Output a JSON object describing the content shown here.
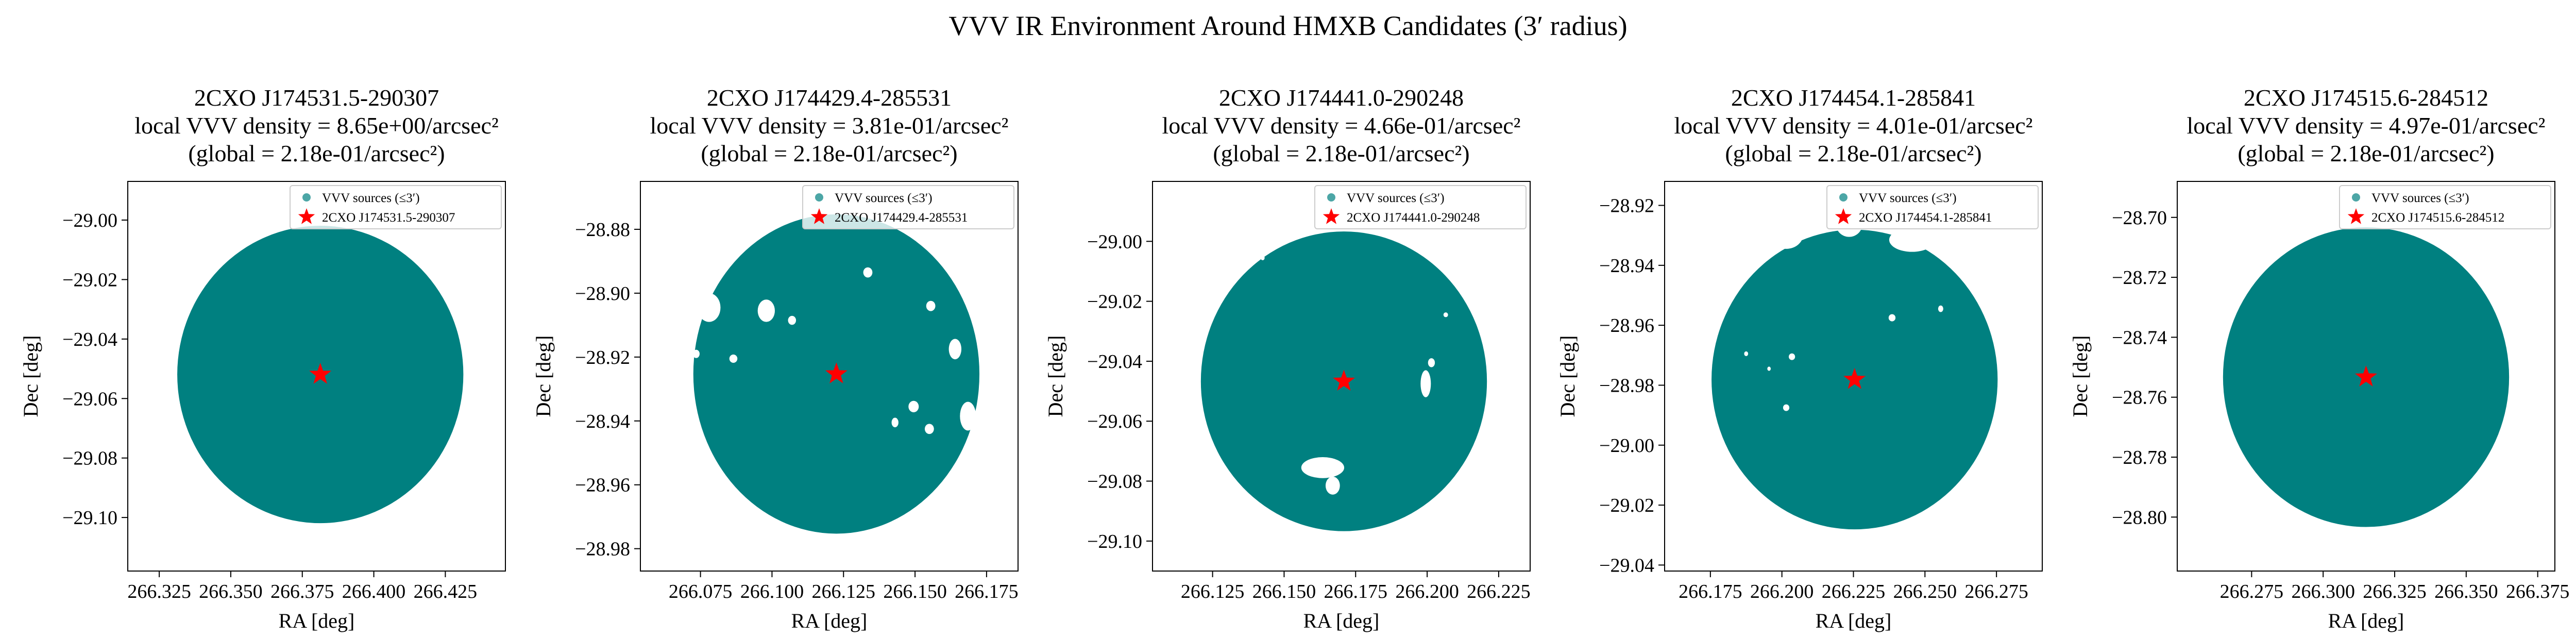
{
  "figure": {
    "suptitle": "VVV IR Environment Around HMXB Candidates (3′ radius)"
  },
  "chart_data": [
    {
      "type": "scatter",
      "title_lines": [
        "2CXO J174531.5-290307",
        "local VVV density = 8.65e+00/arcsec²",
        "(global = 2.18e-01/arcsec²)"
      ],
      "xlabel": "RA [deg]",
      "ylabel": "Dec [deg]",
      "xlim": [
        266.314,
        266.446
      ],
      "ylim": [
        -29.118,
        -28.987
      ],
      "xticks": [
        266.325,
        266.35,
        266.375,
        266.4,
        266.425
      ],
      "xtick_labels": [
        "266.325",
        "266.350",
        "266.375",
        "266.400",
        "266.425"
      ],
      "yticks": [
        -29.1,
        -29.08,
        -29.06,
        -29.04,
        -29.02,
        -29.0
      ],
      "ytick_labels": [
        "−29.10",
        "−29.08",
        "−29.06",
        "−29.04",
        "−29.02",
        "−29.00"
      ],
      "center": {
        "ra": 266.3813,
        "dec": -29.0519
      },
      "radius_deg": 0.05,
      "voids": [],
      "bites": [],
      "series": [
        {
          "name": "VVV sources (≤3′)",
          "color": "#008080",
          "marker": "circle"
        },
        {
          "name": "2CXO J174531.5-290307",
          "color": "#ff0000",
          "marker": "star"
        }
      ],
      "legend": "top-right"
    },
    {
      "type": "scatter",
      "title_lines": [
        "2CXO J174429.4-285531",
        "local VVV density = 3.81e-01/arcsec²",
        "(global = 2.18e-01/arcsec²)"
      ],
      "xlabel": "RA [deg]",
      "ylabel": "Dec [deg]",
      "xlim": [
        266.054,
        266.186
      ],
      "ylim": [
        -28.987,
        -28.865
      ],
      "xticks": [
        266.075,
        266.1,
        266.125,
        266.15,
        266.175
      ],
      "xtick_labels": [
        "266.075",
        "266.100",
        "266.125",
        "266.150",
        "266.175"
      ],
      "yticks": [
        -28.98,
        -28.96,
        -28.94,
        -28.92,
        -28.9,
        -28.88
      ],
      "ytick_labels": [
        "−28.98",
        "−28.96",
        "−28.94",
        "−28.92",
        "−28.90",
        "−28.88"
      ],
      "center": {
        "ra": 266.1225,
        "dec": -28.9253
      },
      "radius_deg": 0.05,
      "voids": [
        {
          "ra": 266.078,
          "dec": -28.9045,
          "rra": 0.004,
          "rdec": 0.0045
        },
        {
          "ra": 266.098,
          "dec": -28.9055,
          "rra": 0.003,
          "rdec": 0.0035
        },
        {
          "ra": 266.0735,
          "dec": -28.919,
          "rra": 0.0012,
          "rdec": 0.0013
        },
        {
          "ra": 266.0865,
          "dec": -28.9205,
          "rra": 0.0014,
          "rdec": 0.0013
        },
        {
          "ra": 266.107,
          "dec": -28.9085,
          "rra": 0.0014,
          "rdec": 0.0014
        },
        {
          "ra": 266.1335,
          "dec": -28.8935,
          "rra": 0.0016,
          "rdec": 0.0016
        },
        {
          "ra": 266.1555,
          "dec": -28.904,
          "rra": 0.0016,
          "rdec": 0.0016
        },
        {
          "ra": 266.164,
          "dec": -28.9175,
          "rra": 0.0022,
          "rdec": 0.0032
        },
        {
          "ra": 266.1495,
          "dec": -28.9355,
          "rra": 0.0018,
          "rdec": 0.0018
        },
        {
          "ra": 266.143,
          "dec": -28.9405,
          "rra": 0.0012,
          "rdec": 0.0015
        },
        {
          "ra": 266.155,
          "dec": -28.9425,
          "rra": 0.0016,
          "rdec": 0.0016
        },
        {
          "ra": 266.1685,
          "dec": -28.9385,
          "rra": 0.0028,
          "rdec": 0.0045
        }
      ],
      "bites": [],
      "series": [
        {
          "name": "VVV sources (≤3′)",
          "color": "#008080",
          "marker": "circle"
        },
        {
          "name": "2CXO J174429.4-285531",
          "color": "#ff0000",
          "marker": "star"
        }
      ],
      "legend": "top-right"
    },
    {
      "type": "scatter",
      "title_lines": [
        "2CXO J174441.0-290248",
        "local VVV density = 4.66e-01/arcsec²",
        "(global = 2.18e-01/arcsec²)"
      ],
      "xlabel": "RA [deg]",
      "ylabel": "Dec [deg]",
      "xlim": [
        266.104,
        266.236
      ],
      "ylim": [
        -29.11,
        -28.98
      ],
      "xticks": [
        266.125,
        266.15,
        266.175,
        266.2,
        266.225
      ],
      "xtick_labels": [
        "266.125",
        "266.150",
        "266.175",
        "266.200",
        "266.225"
      ],
      "yticks": [
        -29.1,
        -29.08,
        -29.06,
        -29.04,
        -29.02,
        -29.0
      ],
      "ytick_labels": [
        "−29.10",
        "−29.08",
        "−29.06",
        "−29.04",
        "−29.02",
        "−29.00"
      ],
      "center": {
        "ra": 266.1709,
        "dec": -29.0467
      },
      "radius_deg": 0.05,
      "voids": [
        {
          "ra": 266.1635,
          "dec": -29.0755,
          "rra": 0.0075,
          "rdec": 0.0035
        },
        {
          "ra": 266.167,
          "dec": -29.0815,
          "rra": 0.0025,
          "rdec": 0.003
        },
        {
          "ra": 266.1995,
          "dec": -29.0475,
          "rra": 0.0018,
          "rdec": 0.0045
        },
        {
          "ra": 266.2015,
          "dec": -29.0405,
          "rra": 0.0012,
          "rdec": 0.0015
        },
        {
          "ra": 266.1425,
          "dec": -29.0055,
          "rra": 0.0007,
          "rdec": 0.0008
        },
        {
          "ra": 266.2065,
          "dec": -29.0245,
          "rra": 0.0008,
          "rdec": 0.0008
        }
      ],
      "bites": [],
      "series": [
        {
          "name": "VVV sources (≤3′)",
          "color": "#008080",
          "marker": "circle"
        },
        {
          "name": "2CXO J174441.0-290248",
          "color": "#ff0000",
          "marker": "star"
        }
      ],
      "legend": "top-right"
    },
    {
      "type": "scatter",
      "title_lines": [
        "2CXO J174454.1-285841",
        "local VVV density = 4.01e-01/arcsec²",
        "(global = 2.18e-01/arcsec²)"
      ],
      "xlabel": "RA [deg]",
      "ylabel": "Dec [deg]",
      "xlim": [
        266.159,
        266.291
      ],
      "ylim": [
        -29.042,
        -28.912
      ],
      "xticks": [
        266.175,
        266.2,
        266.225,
        266.25,
        266.275
      ],
      "xtick_labels": [
        "266.175",
        "266.200",
        "266.225",
        "266.250",
        "266.275"
      ],
      "yticks": [
        -29.04,
        -29.02,
        -29.0,
        -28.98,
        -28.96,
        -28.94,
        -28.92
      ],
      "ytick_labels": [
        "−29.04",
        "−29.02",
        "−29.00",
        "−28.98",
        "−28.96",
        "−28.94",
        "−28.92"
      ],
      "center": {
        "ra": 266.2254,
        "dec": -28.9781
      },
      "radius_deg": 0.05,
      "voids": [
        {
          "ra": 266.2385,
          "dec": -28.9575,
          "rra": 0.0012,
          "rdec": 0.0012
        },
        {
          "ra": 266.2555,
          "dec": -28.9545,
          "rra": 0.0009,
          "rdec": 0.0011
        },
        {
          "ra": 266.2745,
          "dec": -28.9605,
          "rra": 0.0013,
          "rdec": 0.0015
        },
        {
          "ra": 266.1875,
          "dec": -28.9695,
          "rra": 0.0007,
          "rdec": 0.0008
        },
        {
          "ra": 266.2035,
          "dec": -28.9705,
          "rra": 0.0011,
          "rdec": 0.0011
        },
        {
          "ra": 266.1955,
          "dec": -28.9745,
          "rra": 0.0006,
          "rdec": 0.0007
        },
        {
          "ra": 266.2015,
          "dec": -28.9875,
          "rra": 0.0011,
          "rdec": 0.0011
        }
      ],
      "bites": [
        {
          "ra": 266.2015,
          "dec": -28.9295,
          "rra": 0.006,
          "rdec": 0.005
        },
        {
          "ra": 266.2235,
          "dec": -28.9265,
          "rra": 0.0045,
          "rdec": 0.004
        },
        {
          "ra": 266.2455,
          "dec": -28.9315,
          "rra": 0.008,
          "rdec": 0.004
        },
        {
          "ra": 266.2645,
          "dec": -28.9355,
          "rra": 0.007,
          "rdec": 0.004
        }
      ],
      "series": [
        {
          "name": "VVV sources (≤3′)",
          "color": "#008080",
          "marker": "circle"
        },
        {
          "name": "2CXO J174454.1-285841",
          "color": "#ff0000",
          "marker": "star"
        }
      ],
      "legend": "top-right"
    },
    {
      "type": "scatter",
      "title_lines": [
        "2CXO J174515.6-284512",
        "local VVV density = 4.97e-01/arcsec²",
        "(global = 2.18e-01/arcsec²)"
      ],
      "xlabel": "RA [deg]",
      "ylabel": "Dec [deg]",
      "xlim": [
        266.249,
        266.381
      ],
      "ylim": [
        -28.818,
        -28.688
      ],
      "xticks": [
        266.275,
        266.3,
        266.325,
        266.35,
        266.375
      ],
      "xtick_labels": [
        "266.275",
        "266.300",
        "266.325",
        "266.350",
        "266.375"
      ],
      "yticks": [
        -28.8,
        -28.78,
        -28.76,
        -28.74,
        -28.72,
        -28.7
      ],
      "ytick_labels": [
        "−28.80",
        "−28.78",
        "−28.76",
        "−28.74",
        "−28.72",
        "−28.70"
      ],
      "center": {
        "ra": 266.315,
        "dec": -28.7533
      },
      "radius_deg": 0.05,
      "voids": [],
      "bites": [],
      "series": [
        {
          "name": "VVV sources (≤3′)",
          "color": "#008080",
          "marker": "circle"
        },
        {
          "name": "2CXO J174515.6-284512",
          "color": "#ff0000",
          "marker": "star"
        }
      ],
      "legend": "top-right"
    }
  ]
}
